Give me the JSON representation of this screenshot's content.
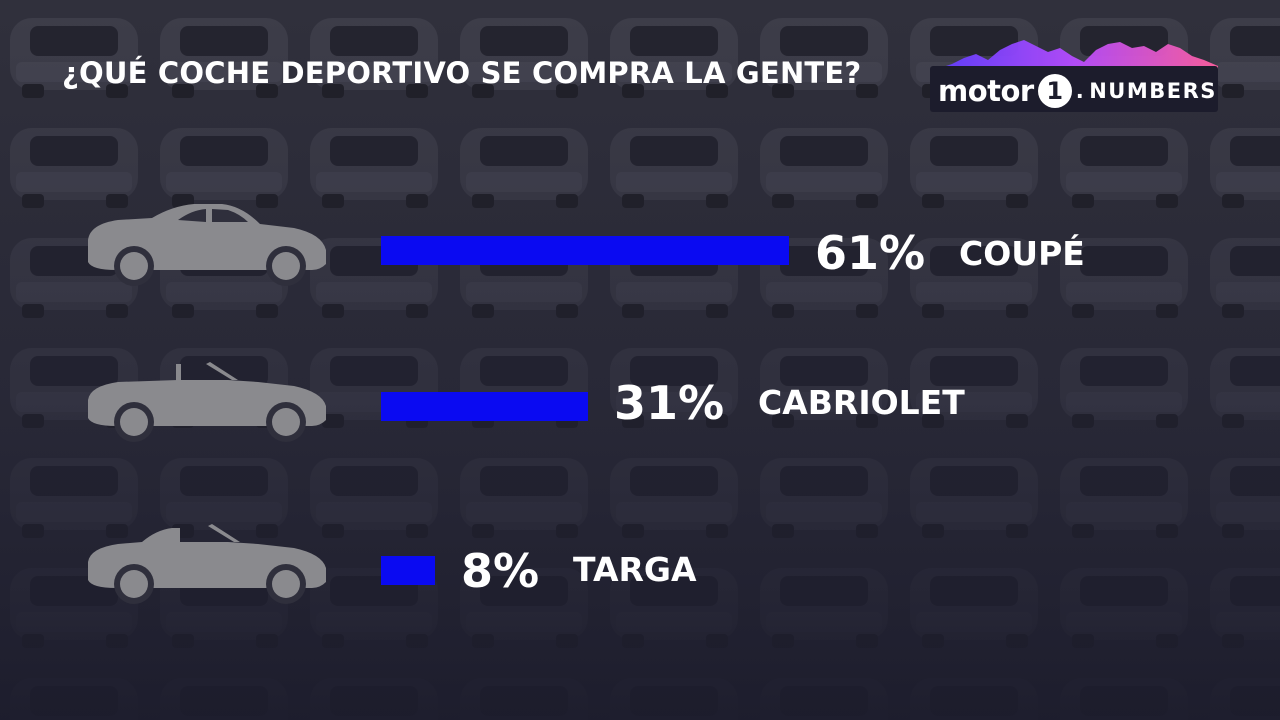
{
  "title": "¿QUÉ COCHE DEPORTIVO SE COMPRA LA GENTE?",
  "logo": {
    "motor": "motor",
    "one": "1",
    "dot": ".",
    "numbers": "NUMBERS"
  },
  "colors": {
    "bar": "#0a0af2",
    "background": "#2a2a3a",
    "icon": "#8a8a8e",
    "text": "#ffffff"
  },
  "chart_data": {
    "type": "bar",
    "orientation": "horizontal",
    "categories": [
      "COUPÉ",
      "CABRIOLET",
      "TARGA"
    ],
    "values": [
      61,
      31,
      8
    ],
    "value_labels": [
      "61%",
      "31%",
      "8%"
    ],
    "icons": [
      "coupe-car-icon",
      "cabriolet-car-icon",
      "targa-car-icon"
    ],
    "unit": "%",
    "xlim": [
      0,
      61
    ],
    "grid": false,
    "legend": "none"
  }
}
